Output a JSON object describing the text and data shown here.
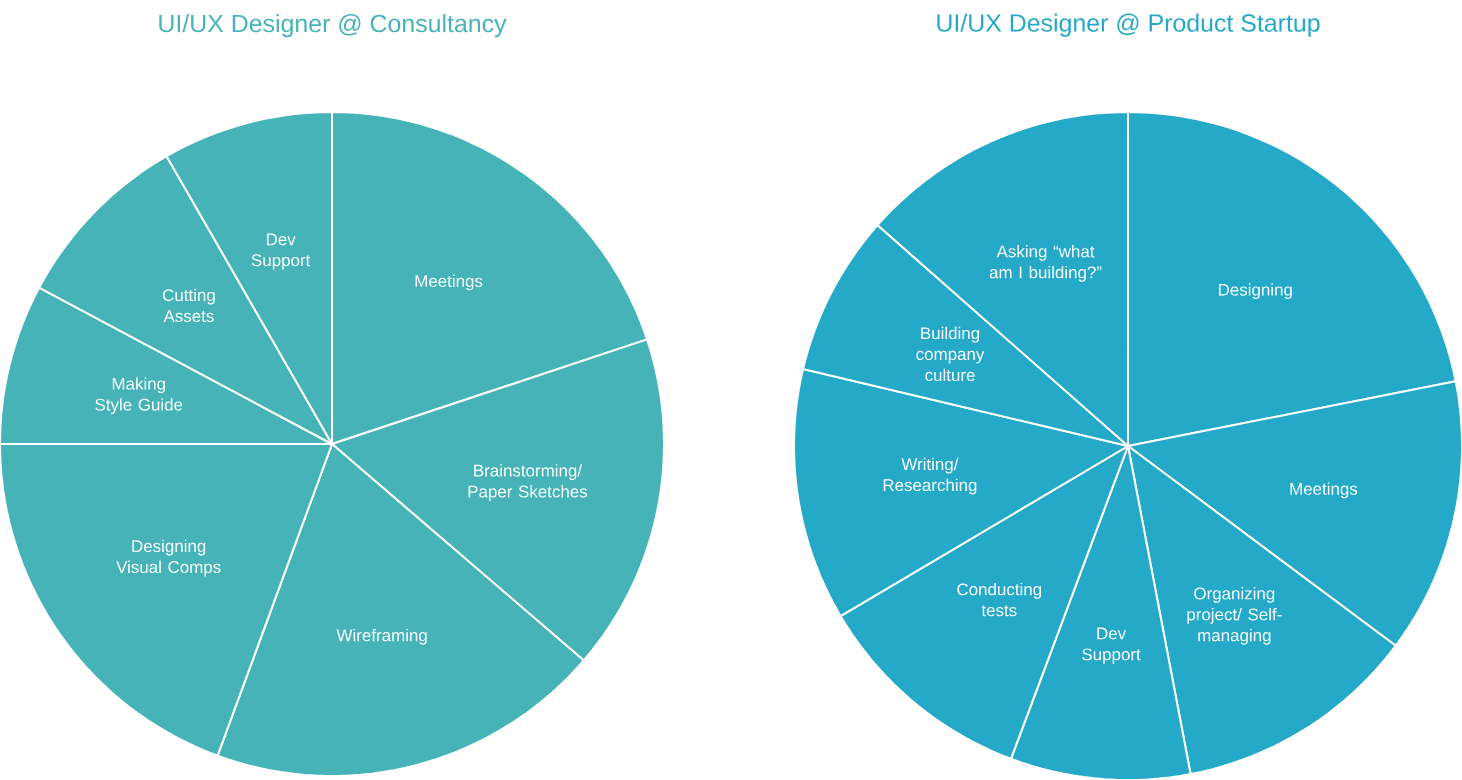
{
  "chart_data": [
    {
      "type": "pie",
      "title": "UI/UX Designer @ Consultancy",
      "categories": [
        "Meetings",
        "Brainstorming/ Paper Sketches",
        "Wireframing",
        "Designing Visual Comps",
        "Making Style Guide",
        "Cutting Assets",
        "Dev Support"
      ],
      "values": [
        19.9,
        16.4,
        19.3,
        19.4,
        7.8,
        8.9,
        8.3
      ],
      "colors": [
        "#45b3b8",
        "#45b3b8",
        "#45b3b8",
        "#45b3b8",
        "#45b3b8",
        "#45b3b8",
        "#45b3b8"
      ]
    },
    {
      "type": "pie",
      "title": "UI/UX Designer @ Product Startup",
      "categories": [
        "Designing",
        "Meetings",
        "Organizing project/ Self-managing",
        "Dev Support",
        "Conducting tests",
        "Writing/ Researching",
        "Building company culture",
        "Asking “what am I building?”"
      ],
      "values": [
        21.9,
        13.3,
        11.8,
        8.7,
        10.8,
        12.2,
        7.8,
        13.5
      ],
      "colors": [
        "#24a9c8",
        "#24a9c8",
        "#24a9c8",
        "#24a9c8",
        "#24a9c8",
        "#24a9c8",
        "#24a9c8",
        "#24a9c8"
      ]
    }
  ]
}
